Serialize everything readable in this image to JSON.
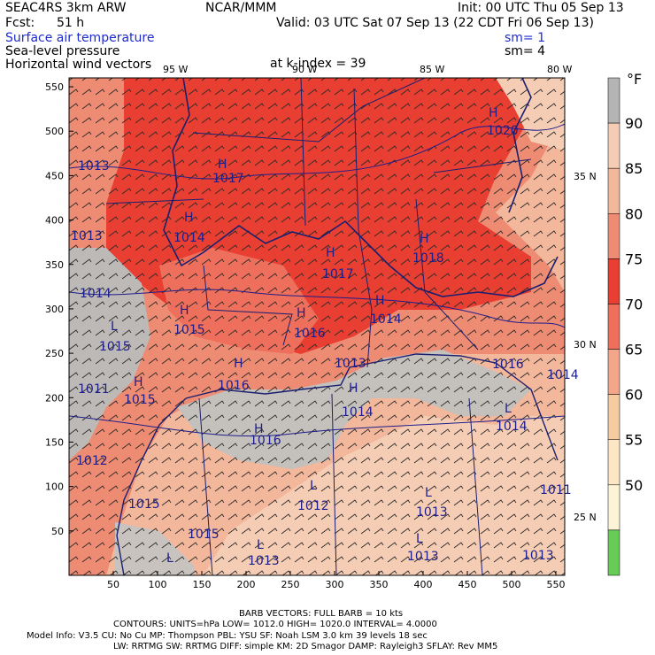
{
  "header": {
    "model": "SEAC4RS  3km ARW",
    "center": "NCAR/MMM",
    "init": "Init: 00 UTC Thu 05 Sep 13",
    "fcst_label": "Fcst:",
    "fcst_value": "51 h",
    "valid": "Valid: 03 UTC Sat 07 Sep 13 (22 CDT Fri 06 Sep 13)",
    "field1": "Surface air temperature",
    "field1_sm": "sm= 1",
    "field2": "Sea-level pressure",
    "field2_sm": "sm= 4",
    "field3": "Horizontal wind vectors",
    "level": "at k-index =  39"
  },
  "map": {
    "x_ticks": [
      "50",
      "100",
      "150",
      "200",
      "250",
      "300",
      "350",
      "400",
      "450",
      "500",
      "550"
    ],
    "y_ticks": [
      "550",
      "500",
      "450",
      "400",
      "350",
      "300",
      "250",
      "200",
      "150",
      "100",
      "50"
    ],
    "lon_labels": [
      "95 W",
      "90 W",
      "85 W",
      "80 W"
    ],
    "lat_labels": [
      "35 N",
      "30 N",
      "25 N"
    ],
    "highs": [
      "H",
      "H",
      "H",
      "H",
      "H",
      "H",
      "H",
      "H",
      "H",
      "H",
      "H",
      "H"
    ],
    "lows": [
      "L",
      "L",
      "L",
      "L",
      "L",
      "L",
      "L"
    ],
    "pressure_values": [
      "1020",
      "1017",
      "1014",
      "1017",
      "1018",
      "1015",
      "1014",
      "1016",
      "1016",
      "1015",
      "1014",
      "1016",
      "1015",
      "1015",
      "1014",
      "1015",
      "1014",
      "1012",
      "1013",
      "1013",
      "1013",
      "1013",
      "1013",
      "1012",
      "1014",
      "1011",
      "1011",
      "1013",
      "1013",
      "1016"
    ]
  },
  "colorbar": {
    "unit": "°F",
    "labels": [
      "90",
      "85",
      "80",
      "75",
      "70",
      "65",
      "60",
      "55",
      "50"
    ],
    "colors": [
      "#b4b4b4",
      "#f5cdb4",
      "#f3b79c",
      "#ee8b73",
      "#e83f32",
      "#ee6f5b",
      "#f3a68a",
      "#f7cba0",
      "#fce6c3",
      "#fdf4d7",
      "#66cc55"
    ]
  },
  "footer": {
    "barb_line": "BARB VECTORS:  FULL BARB = 10 kts",
    "contours": "CONTOURS:  UNITS=hPa  LOW=  1012.0      HIGH=  1020.0       INTERVAL=    4.0000",
    "model_info_1": "Model Info: V3.5        CU: No Cu       MP: Thompson      PBL: YSU        SF: Noah LSM     3.0 km   39 levels    18 sec",
    "model_info_2": "LW: RRTMG    SW: RRTMG   DIFF: simple KM: 2D Smagor DAMP: Rayleigh3  SFLAY: Rev MM5"
  }
}
